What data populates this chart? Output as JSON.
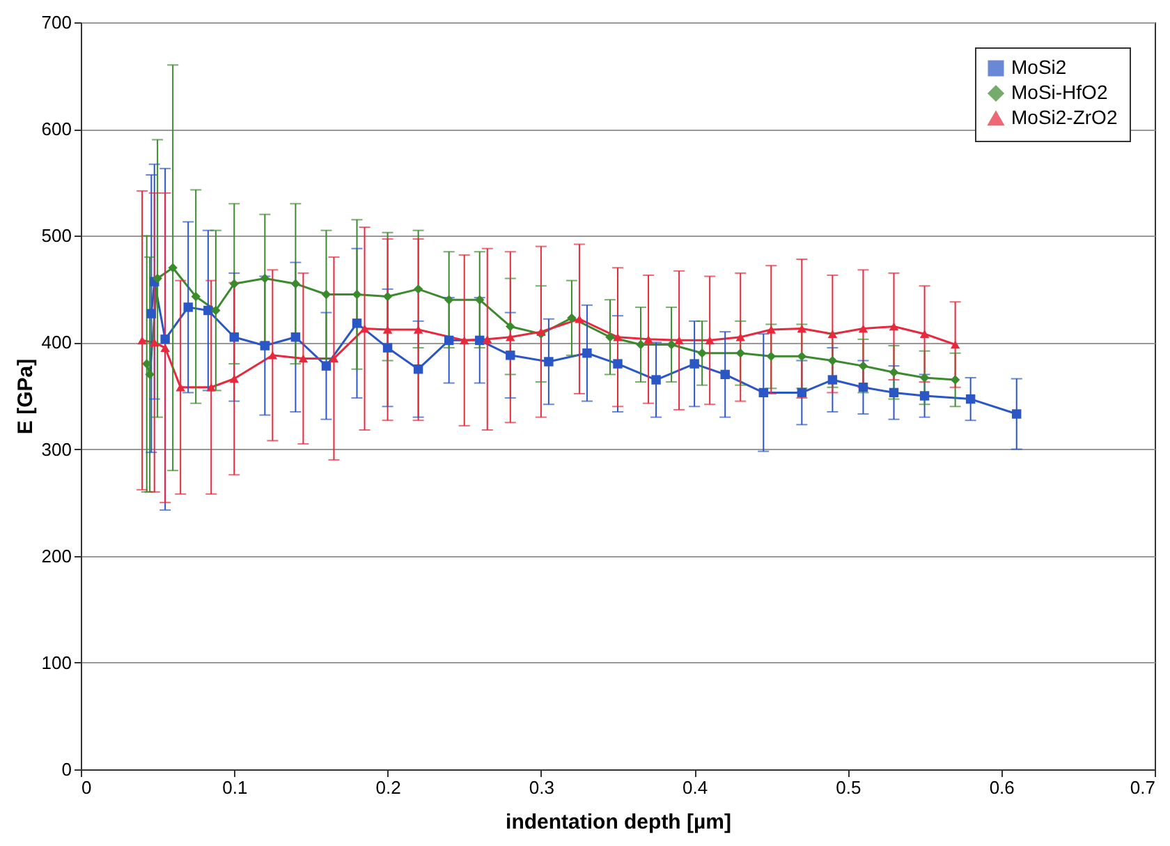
{
  "chart_data": {
    "type": "line",
    "xlabel": "indentation depth [µm]",
    "ylabel": "E [GPa]",
    "xlim": [
      0,
      0.7
    ],
    "xticks": [
      0,
      0.1,
      0.2,
      0.3,
      0.4,
      0.5,
      0.6,
      0.7
    ],
    "ylim": [
      0,
      700
    ],
    "yticks": [
      0,
      100,
      200,
      300,
      400,
      500,
      600,
      700
    ],
    "grid": "y",
    "legend": "top right",
    "series": [
      {
        "name": "MoSi2",
        "color": "#2a56c6",
        "marker": "square",
        "x": [
          0.046,
          0.048,
          0.055,
          0.07,
          0.083,
          0.1,
          0.12,
          0.14,
          0.16,
          0.18,
          0.2,
          0.22,
          0.24,
          0.26,
          0.28,
          0.305,
          0.33,
          0.35,
          0.375,
          0.4,
          0.42,
          0.445,
          0.47,
          0.49,
          0.51,
          0.53,
          0.55,
          0.58,
          0.61
        ],
        "values": [
          427,
          457,
          403,
          433,
          430,
          405,
          397,
          405,
          378,
          418,
          395,
          375,
          402,
          402,
          388,
          382,
          390,
          380,
          365,
          380,
          370,
          353,
          353,
          365,
          358,
          353,
          350,
          347,
          333
        ],
        "errors": [
          130,
          110,
          160,
          80,
          75,
          60,
          65,
          70,
          50,
          70,
          55,
          45,
          40,
          40,
          40,
          40,
          45,
          45,
          35,
          40,
          40,
          55,
          30,
          30,
          25,
          25,
          20,
          20,
          33
        ]
      },
      {
        "name": "MoSi-HfO2",
        "color": "#3c8a2e",
        "marker": "diamond",
        "x": [
          0.043,
          0.045,
          0.05,
          0.06,
          0.075,
          0.088,
          0.1,
          0.12,
          0.14,
          0.16,
          0.18,
          0.2,
          0.22,
          0.24,
          0.26,
          0.28,
          0.3,
          0.32,
          0.345,
          0.365,
          0.385,
          0.405,
          0.43,
          0.45,
          0.47,
          0.49,
          0.51,
          0.53,
          0.55,
          0.57
        ],
        "values": [
          380,
          370,
          460,
          470,
          443,
          430,
          455,
          460,
          455,
          445,
          445,
          443,
          450,
          440,
          440,
          415,
          408,
          423,
          405,
          398,
          398,
          390,
          390,
          387,
          387,
          383,
          378,
          372,
          367,
          365
        ],
        "errors": [
          120,
          110,
          130,
          190,
          100,
          75,
          75,
          60,
          75,
          60,
          70,
          60,
          55,
          45,
          45,
          45,
          45,
          35,
          35,
          35,
          35,
          30,
          30,
          30,
          30,
          25,
          25,
          25,
          25,
          25
        ]
      },
      {
        "name": "MoSi2-ZrO2",
        "color": "#e8283c",
        "marker": "triangle",
        "x": [
          0.04,
          0.048,
          0.055,
          0.065,
          0.085,
          0.1,
          0.125,
          0.145,
          0.165,
          0.185,
          0.2,
          0.22,
          0.25,
          0.265,
          0.28,
          0.3,
          0.325,
          0.35,
          0.37,
          0.39,
          0.41,
          0.43,
          0.45,
          0.47,
          0.49,
          0.51,
          0.53,
          0.55,
          0.57
        ],
        "values": [
          402,
          400,
          395,
          358,
          358,
          366,
          388,
          385,
          385,
          413,
          412,
          412,
          402,
          403,
          405,
          410,
          422,
          405,
          403,
          402,
          402,
          405,
          412,
          413,
          408,
          413,
          415,
          408,
          398
        ],
        "errors": [
          140,
          140,
          145,
          100,
          100,
          90,
          80,
          80,
          95,
          95,
          85,
          85,
          80,
          85,
          80,
          80,
          70,
          65,
          60,
          65,
          60,
          60,
          60,
          65,
          55,
          55,
          50,
          45,
          40
        ]
      }
    ]
  }
}
